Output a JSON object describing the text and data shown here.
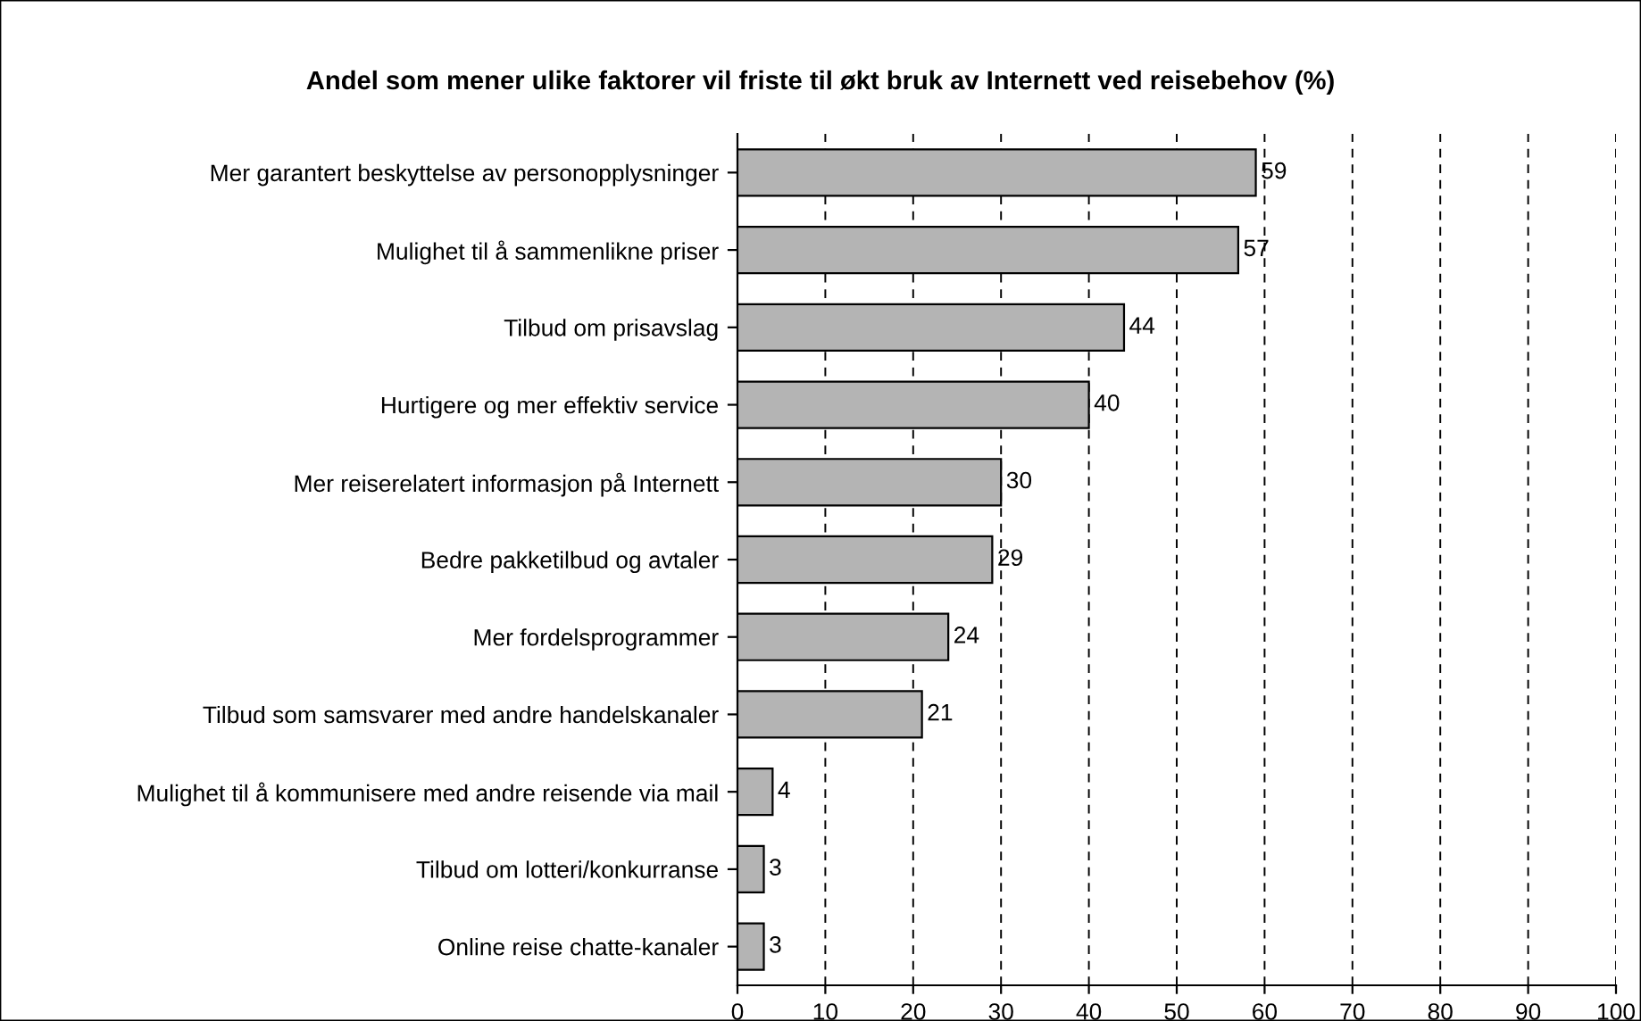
{
  "chart_data": {
    "type": "bar",
    "orientation": "horizontal",
    "title": "Andel som mener ulike faktorer vil friste til økt bruk av Internett ved reisebehov (%)",
    "categories": [
      "Mer garantert beskyttelse av personopplysninger",
      "Mulighet til å sammenlikne priser",
      "Tilbud om prisavslag",
      "Hurtigere og mer effektiv service",
      "Mer reiserelatert informasjon på Internett",
      "Bedre pakketilbud og avtaler",
      "Mer fordelsprogrammer",
      "Tilbud som samsvarer med andre handelskanaler",
      "Mulighet til å kommunisere med andre reisende via mail",
      "Tilbud om lotteri/konkurranse",
      "Online reise chatte-kanaler"
    ],
    "values": [
      59,
      57,
      44,
      40,
      30,
      29,
      24,
      21,
      4,
      3,
      3
    ],
    "color": "#b4b4b4",
    "xlim": [
      0,
      100
    ],
    "xticks": [
      0,
      10,
      20,
      30,
      40,
      50,
      60,
      70,
      80,
      90,
      100
    ],
    "grid": "x",
    "data_labels": true,
    "legend": false
  }
}
